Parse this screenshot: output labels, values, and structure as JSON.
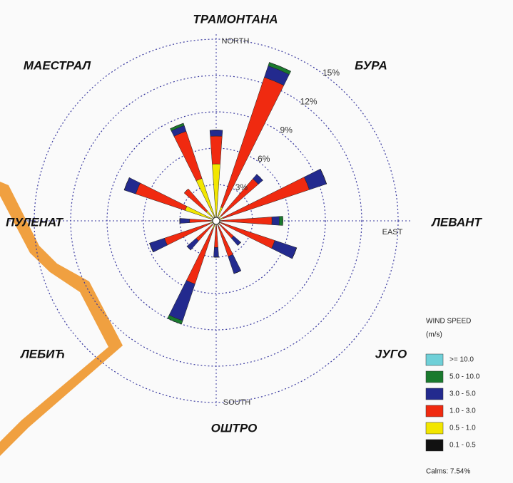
{
  "chart_data": {
    "type": "windrose",
    "compass": [
      "ТРАМОНТАНА",
      "БУРА",
      "ЛЕВАНТ",
      "ЈУГО",
      "ОШТРО",
      "ЛЕБИЋ",
      "ПУЛЕНАТ",
      "МАЕСТРАЛ"
    ],
    "axis_labels": [
      "NORTH",
      "EAST",
      "SOUTH"
    ],
    "legend_title": "WIND SPEED",
    "legend_unit": "(m/s)",
    "calms_label": "Calms: 7.54%",
    "categories": [
      null,
      null,
      null,
      null,
      null,
      null,
      null,
      null,
      null,
      null,
      null,
      null,
      null,
      null,
      null,
      null
    ],
    "rlim": [
      0,
      15
    ],
    "rticks": [
      {
        "value": 3,
        "label": "3%"
      },
      {
        "value": 6,
        "label": "6%"
      },
      {
        "value": 9,
        "label": "9%"
      },
      {
        "value": 12,
        "label": "12%"
      },
      {
        "value": 15,
        "label": "15%"
      }
    ],
    "series": [
      {
        "name": "0.1 - 0.5",
        "color": "#111111",
        "values": [
          0.2,
          0.2,
          0.1,
          0.1,
          0.1,
          0.1,
          0.1,
          0.1,
          0.1,
          0.2,
          0.1,
          0.1,
          0.1,
          0.2,
          0.1,
          0.2
        ]
      },
      {
        "name": "0.5 - 1.0",
        "color": "#f2e600",
        "values": [
          4.5,
          1.0,
          0.5,
          0.5,
          0.3,
          0.3,
          0.3,
          0.3,
          0.3,
          0.5,
          0.3,
          0.5,
          0.3,
          2.5,
          1.0,
          3.5
        ]
      },
      {
        "name": "1.0 - 3.0",
        "color": "#f02a10",
        "values": [
          2.3,
          11.3,
          4.0,
          7.5,
          4.2,
          4.7,
          1.5,
          2.7,
          1.8,
          4.8,
          1.8,
          3.9,
          1.8,
          4.3,
          2.4,
          4.1
        ]
      },
      {
        "name": "3.0 - 5.0",
        "color": "#232a8e",
        "values": [
          0.5,
          1.0,
          0.5,
          1.5,
          0.6,
          1.9,
          0.8,
          1.5,
          0.8,
          3.2,
          1.0,
          1.3,
          0.8,
          1.0,
          0.0,
          0.5
        ]
      },
      {
        "name": "5.0 - 10.0",
        "color": "#1a7a2e",
        "values": [
          0.0,
          0.3,
          0.0,
          0.0,
          0.3,
          0.0,
          0.0,
          0.0,
          0.0,
          0.3,
          0.0,
          0.0,
          0.0,
          0.0,
          0.0,
          0.2
        ]
      },
      {
        "name": ">= 10.0",
        "color": "#6fd0d8",
        "values": [
          0,
          0,
          0,
          0,
          0,
          0,
          0,
          0,
          0,
          0,
          0,
          0,
          0,
          0,
          0,
          0
        ]
      }
    ]
  }
}
